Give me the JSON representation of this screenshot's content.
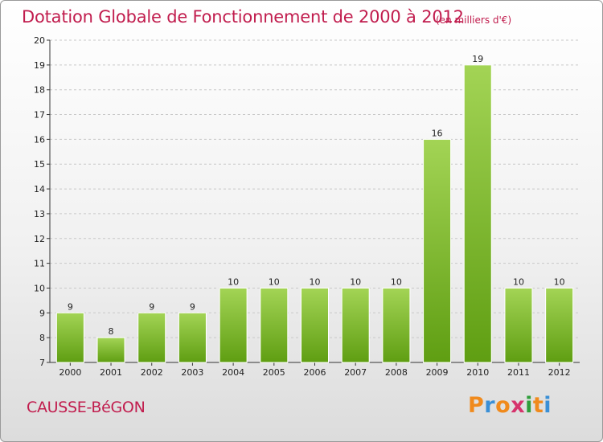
{
  "header": {
    "title": "Dotation Globale de Fonctionnement de 2000 à 2012",
    "subtitle": "(en milliers d'€)"
  },
  "footer": {
    "commune": "CAUSSE-BéGON",
    "logo": [
      "P",
      "r",
      "o",
      "x",
      "i",
      "t",
      "i"
    ],
    "logo_colors": [
      "#f08a1c",
      "#3a8fd6",
      "#f08a1c",
      "#d6336c",
      "#2e9e3a",
      "#f08a1c",
      "#3a8fd6"
    ]
  },
  "colors": {
    "title": "#c11d4e",
    "bar_light": "#a3d455",
    "bar_dark": "#5f9e12",
    "grid": "#c8c8c8",
    "axis": "#333333"
  },
  "chart_data": {
    "type": "bar",
    "title": "Dotation Globale de Fonctionnement de 2000 à 2012",
    "subtitle": "(en milliers d'€)",
    "categories": [
      "2000",
      "2001",
      "2002",
      "2003",
      "2004",
      "2005",
      "2006",
      "2007",
      "2008",
      "2009",
      "2010",
      "2011",
      "2012"
    ],
    "values": [
      9,
      8,
      9,
      9,
      10,
      10,
      10,
      10,
      10,
      16,
      19,
      10,
      10
    ],
    "ylim": [
      7,
      20
    ],
    "yticks": [
      7,
      8,
      9,
      10,
      11,
      12,
      13,
      14,
      15,
      16,
      17,
      18,
      19,
      20
    ],
    "grid": "horizontal dashed",
    "legend": "none"
  }
}
